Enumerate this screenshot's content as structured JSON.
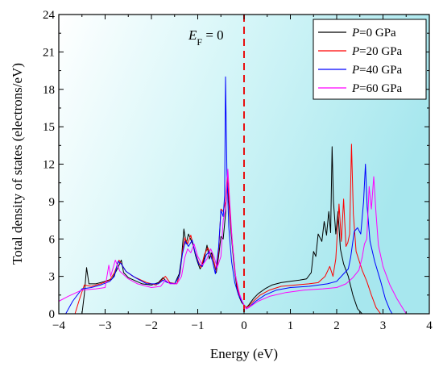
{
  "chart_data": {
    "type": "line",
    "title": "",
    "xlabel": "Energy (eV)",
    "ylabel": "Total density of states (electrons/eV)",
    "xlim": [
      -4,
      4
    ],
    "ylim": [
      0,
      24
    ],
    "xticks": [
      -4,
      -3,
      -2,
      -1,
      0,
      1,
      2,
      3,
      4
    ],
    "xtick_labels": [
      "−4",
      "−3",
      "−2",
      "−1",
      "0",
      "1",
      "2",
      "3",
      "4"
    ],
    "yticks": [
      0,
      3,
      6,
      9,
      12,
      15,
      18,
      21,
      24
    ],
    "ytick_labels": [
      "0",
      "3",
      "6",
      "9",
      "12",
      "15",
      "18",
      "21",
      "24"
    ],
    "grid": false,
    "legend_position": "top-right",
    "annotation": {
      "ef_label_main": "E",
      "ef_label_sub": "F",
      "ef_label_suffix": " = 0",
      "ef_x": 0
    },
    "series": [
      {
        "name": "P=0 GPa",
        "legend_italic": "P",
        "legend_rest": "=0 GPa",
        "color": "#000000",
        "points": [
          [
            -3.5,
            0
          ],
          [
            -3.45,
            1.5
          ],
          [
            -3.4,
            3.7
          ],
          [
            -3.35,
            2.4
          ],
          [
            -3.2,
            2.4
          ],
          [
            -3.0,
            2.6
          ],
          [
            -2.85,
            2.8
          ],
          [
            -2.75,
            3.5
          ],
          [
            -2.65,
            4.3
          ],
          [
            -2.6,
            3.3
          ],
          [
            -2.5,
            2.9
          ],
          [
            -2.2,
            2.4
          ],
          [
            -2.0,
            2.3
          ],
          [
            -1.85,
            2.5
          ],
          [
            -1.75,
            2.9
          ],
          [
            -1.65,
            2.5
          ],
          [
            -1.5,
            2.4
          ],
          [
            -1.4,
            3.2
          ],
          [
            -1.35,
            4.5
          ],
          [
            -1.3,
            6.8
          ],
          [
            -1.25,
            5.6
          ],
          [
            -1.2,
            6.4
          ],
          [
            -1.1,
            5.5
          ],
          [
            -1.05,
            4.7
          ],
          [
            -1.0,
            4.1
          ],
          [
            -0.95,
            3.6
          ],
          [
            -0.9,
            3.9
          ],
          [
            -0.85,
            4.6
          ],
          [
            -0.8,
            5.5
          ],
          [
            -0.75,
            4.4
          ],
          [
            -0.7,
            4.9
          ],
          [
            -0.65,
            4.1
          ],
          [
            -0.6,
            3.3
          ],
          [
            -0.55,
            4.6
          ],
          [
            -0.5,
            6.2
          ],
          [
            -0.45,
            6.0
          ],
          [
            -0.4,
            8.0
          ],
          [
            -0.37,
            10.4
          ],
          [
            -0.33,
            9.0
          ],
          [
            -0.28,
            6.5
          ],
          [
            -0.22,
            4.0
          ],
          [
            -0.16,
            2.2
          ],
          [
            -0.1,
            1.3
          ],
          [
            -0.05,
            0.9
          ],
          [
            0.0,
            0.7
          ],
          [
            0.05,
            0.5
          ],
          [
            0.1,
            0.7
          ],
          [
            0.2,
            1.2
          ],
          [
            0.3,
            1.6
          ],
          [
            0.45,
            2.0
          ],
          [
            0.6,
            2.3
          ],
          [
            0.8,
            2.5
          ],
          [
            1.0,
            2.6
          ],
          [
            1.2,
            2.7
          ],
          [
            1.35,
            2.8
          ],
          [
            1.45,
            3.3
          ],
          [
            1.5,
            5.0
          ],
          [
            1.55,
            4.6
          ],
          [
            1.6,
            6.4
          ],
          [
            1.68,
            5.8
          ],
          [
            1.73,
            7.4
          ],
          [
            1.78,
            6.3
          ],
          [
            1.83,
            8.2
          ],
          [
            1.87,
            6.5
          ],
          [
            1.9,
            13.4
          ],
          [
            1.93,
            9.0
          ],
          [
            1.98,
            6.4
          ],
          [
            2.03,
            8.2
          ],
          [
            2.08,
            5.2
          ],
          [
            2.15,
            4.0
          ],
          [
            2.25,
            3.0
          ],
          [
            2.35,
            1.5
          ],
          [
            2.45,
            0.4
          ],
          [
            2.55,
            0.0
          ]
        ]
      },
      {
        "name": "P=20 GPa",
        "legend_italic": "P",
        "legend_rest": "=20 GPa",
        "color": "#ff0000",
        "points": [
          [
            -3.65,
            0
          ],
          [
            -3.55,
            1.2
          ],
          [
            -3.45,
            2.3
          ],
          [
            -3.3,
            2.2
          ],
          [
            -3.1,
            2.4
          ],
          [
            -2.9,
            2.7
          ],
          [
            -2.8,
            3.3
          ],
          [
            -2.7,
            4.3
          ],
          [
            -2.65,
            4.0
          ],
          [
            -2.55,
            3.4
          ],
          [
            -2.4,
            3.0
          ],
          [
            -2.1,
            2.5
          ],
          [
            -1.9,
            2.3
          ],
          [
            -1.8,
            2.6
          ],
          [
            -1.7,
            3.0
          ],
          [
            -1.6,
            2.5
          ],
          [
            -1.45,
            2.4
          ],
          [
            -1.38,
            3.3
          ],
          [
            -1.33,
            5.0
          ],
          [
            -1.28,
            6.1
          ],
          [
            -1.22,
            5.6
          ],
          [
            -1.15,
            6.3
          ],
          [
            -1.08,
            5.2
          ],
          [
            -1.0,
            4.3
          ],
          [
            -0.93,
            3.7
          ],
          [
            -0.85,
            4.8
          ],
          [
            -0.78,
            5.3
          ],
          [
            -0.7,
            4.6
          ],
          [
            -0.65,
            4.2
          ],
          [
            -0.6,
            3.4
          ],
          [
            -0.55,
            5.0
          ],
          [
            -0.5,
            8.4
          ],
          [
            -0.45,
            8.2
          ],
          [
            -0.4,
            9.0
          ],
          [
            -0.36,
            11.2
          ],
          [
            -0.32,
            8.8
          ],
          [
            -0.26,
            6.0
          ],
          [
            -0.2,
            3.5
          ],
          [
            -0.14,
            2.0
          ],
          [
            -0.08,
            1.2
          ],
          [
            -0.03,
            0.9
          ],
          [
            0.0,
            0.7
          ],
          [
            0.05,
            0.5
          ],
          [
            0.1,
            0.6
          ],
          [
            0.2,
            1.0
          ],
          [
            0.35,
            1.5
          ],
          [
            0.55,
            1.9
          ],
          [
            0.8,
            2.2
          ],
          [
            1.1,
            2.3
          ],
          [
            1.4,
            2.4
          ],
          [
            1.6,
            2.5
          ],
          [
            1.75,
            3.0
          ],
          [
            1.85,
            3.8
          ],
          [
            1.92,
            3.0
          ],
          [
            1.98,
            4.4
          ],
          [
            2.05,
            8.8
          ],
          [
            2.1,
            5.8
          ],
          [
            2.15,
            9.2
          ],
          [
            2.2,
            5.4
          ],
          [
            2.24,
            5.7
          ],
          [
            2.28,
            6.4
          ],
          [
            2.32,
            13.6
          ],
          [
            2.36,
            8.0
          ],
          [
            2.42,
            5.0
          ],
          [
            2.55,
            3.5
          ],
          [
            2.65,
            2.6
          ],
          [
            2.75,
            1.5
          ],
          [
            2.85,
            0.5
          ],
          [
            2.95,
            0.0
          ]
        ]
      },
      {
        "name": "P=40 GPa",
        "legend_italic": "P",
        "legend_rest": "=40 GPa",
        "color": "#0000ff",
        "points": [
          [
            -3.85,
            0
          ],
          [
            -3.7,
            1.0
          ],
          [
            -3.5,
            2.0
          ],
          [
            -3.3,
            2.1
          ],
          [
            -3.1,
            2.3
          ],
          [
            -2.9,
            2.6
          ],
          [
            -2.8,
            3.0
          ],
          [
            -2.72,
            4.2
          ],
          [
            -2.65,
            4.0
          ],
          [
            -2.55,
            3.4
          ],
          [
            -2.35,
            2.9
          ],
          [
            -2.1,
            2.4
          ],
          [
            -1.85,
            2.4
          ],
          [
            -1.75,
            2.7
          ],
          [
            -1.65,
            2.5
          ],
          [
            -1.5,
            2.4
          ],
          [
            -1.4,
            3.0
          ],
          [
            -1.33,
            4.8
          ],
          [
            -1.27,
            5.8
          ],
          [
            -1.2,
            5.4
          ],
          [
            -1.12,
            5.9
          ],
          [
            -1.05,
            4.8
          ],
          [
            -0.98,
            4.0
          ],
          [
            -0.9,
            3.8
          ],
          [
            -0.82,
            4.7
          ],
          [
            -0.75,
            5.0
          ],
          [
            -0.68,
            4.2
          ],
          [
            -0.62,
            3.2
          ],
          [
            -0.55,
            5.3
          ],
          [
            -0.5,
            8.3
          ],
          [
            -0.45,
            7.8
          ],
          [
            -0.42,
            9.5
          ],
          [
            -0.4,
            19.0
          ],
          [
            -0.37,
            11.5
          ],
          [
            -0.33,
            7.0
          ],
          [
            -0.27,
            4.2
          ],
          [
            -0.2,
            2.5
          ],
          [
            -0.12,
            1.5
          ],
          [
            -0.05,
            1.0
          ],
          [
            0.0,
            0.7
          ],
          [
            0.05,
            0.4
          ],
          [
            0.1,
            0.5
          ],
          [
            0.25,
            1.0
          ],
          [
            0.45,
            1.5
          ],
          [
            0.7,
            1.9
          ],
          [
            1.0,
            2.1
          ],
          [
            1.4,
            2.2
          ],
          [
            1.8,
            2.4
          ],
          [
            2.0,
            2.6
          ],
          [
            2.15,
            3.2
          ],
          [
            2.25,
            3.6
          ],
          [
            2.3,
            4.5
          ],
          [
            2.38,
            6.6
          ],
          [
            2.45,
            6.9
          ],
          [
            2.52,
            6.4
          ],
          [
            2.58,
            9.0
          ],
          [
            2.62,
            12.0
          ],
          [
            2.66,
            8.5
          ],
          [
            2.72,
            5.8
          ],
          [
            2.82,
            4.2
          ],
          [
            2.95,
            2.6
          ],
          [
            3.05,
            1.2
          ],
          [
            3.15,
            0.3
          ],
          [
            3.2,
            0.0
          ]
        ]
      },
      {
        "name": "P=60 GPa",
        "legend_italic": "P",
        "legend_rest": "=60 GPa",
        "color": "#ff00ff",
        "points": [
          [
            -4.0,
            1.0
          ],
          [
            -3.8,
            1.4
          ],
          [
            -3.5,
            1.9
          ],
          [
            -3.2,
            2.0
          ],
          [
            -3.0,
            2.1
          ],
          [
            -2.92,
            3.9
          ],
          [
            -2.88,
            3.0
          ],
          [
            -2.78,
            4.3
          ],
          [
            -2.68,
            3.4
          ],
          [
            -2.5,
            2.8
          ],
          [
            -2.3,
            2.4
          ],
          [
            -2.0,
            2.1
          ],
          [
            -1.8,
            2.2
          ],
          [
            -1.7,
            2.7
          ],
          [
            -1.6,
            2.4
          ],
          [
            -1.45,
            2.4
          ],
          [
            -1.35,
            3.0
          ],
          [
            -1.28,
            4.5
          ],
          [
            -1.22,
            5.2
          ],
          [
            -1.15,
            4.9
          ],
          [
            -1.08,
            5.6
          ],
          [
            -1.0,
            4.6
          ],
          [
            -0.9,
            3.9
          ],
          [
            -0.8,
            4.4
          ],
          [
            -0.72,
            5.2
          ],
          [
            -0.65,
            4.6
          ],
          [
            -0.58,
            3.7
          ],
          [
            -0.5,
            4.6
          ],
          [
            -0.45,
            7.5
          ],
          [
            -0.4,
            8.4
          ],
          [
            -0.35,
            11.6
          ],
          [
            -0.31,
            9.0
          ],
          [
            -0.25,
            5.5
          ],
          [
            -0.18,
            3.0
          ],
          [
            -0.1,
            1.6
          ],
          [
            -0.04,
            1.0
          ],
          [
            0.0,
            0.7
          ],
          [
            0.05,
            0.4
          ],
          [
            0.1,
            0.5
          ],
          [
            0.3,
            1.0
          ],
          [
            0.55,
            1.4
          ],
          [
            0.9,
            1.7
          ],
          [
            1.3,
            1.9
          ],
          [
            1.7,
            2.0
          ],
          [
            2.0,
            2.1
          ],
          [
            2.2,
            2.4
          ],
          [
            2.35,
            2.9
          ],
          [
            2.48,
            3.5
          ],
          [
            2.55,
            4.5
          ],
          [
            2.6,
            5.6
          ],
          [
            2.65,
            6.0
          ],
          [
            2.7,
            10.2
          ],
          [
            2.75,
            8.4
          ],
          [
            2.8,
            11.0
          ],
          [
            2.85,
            8.0
          ],
          [
            2.9,
            5.5
          ],
          [
            3.0,
            3.8
          ],
          [
            3.15,
            2.3
          ],
          [
            3.3,
            1.2
          ],
          [
            3.45,
            0.3
          ],
          [
            3.5,
            0.0
          ]
        ]
      }
    ]
  }
}
